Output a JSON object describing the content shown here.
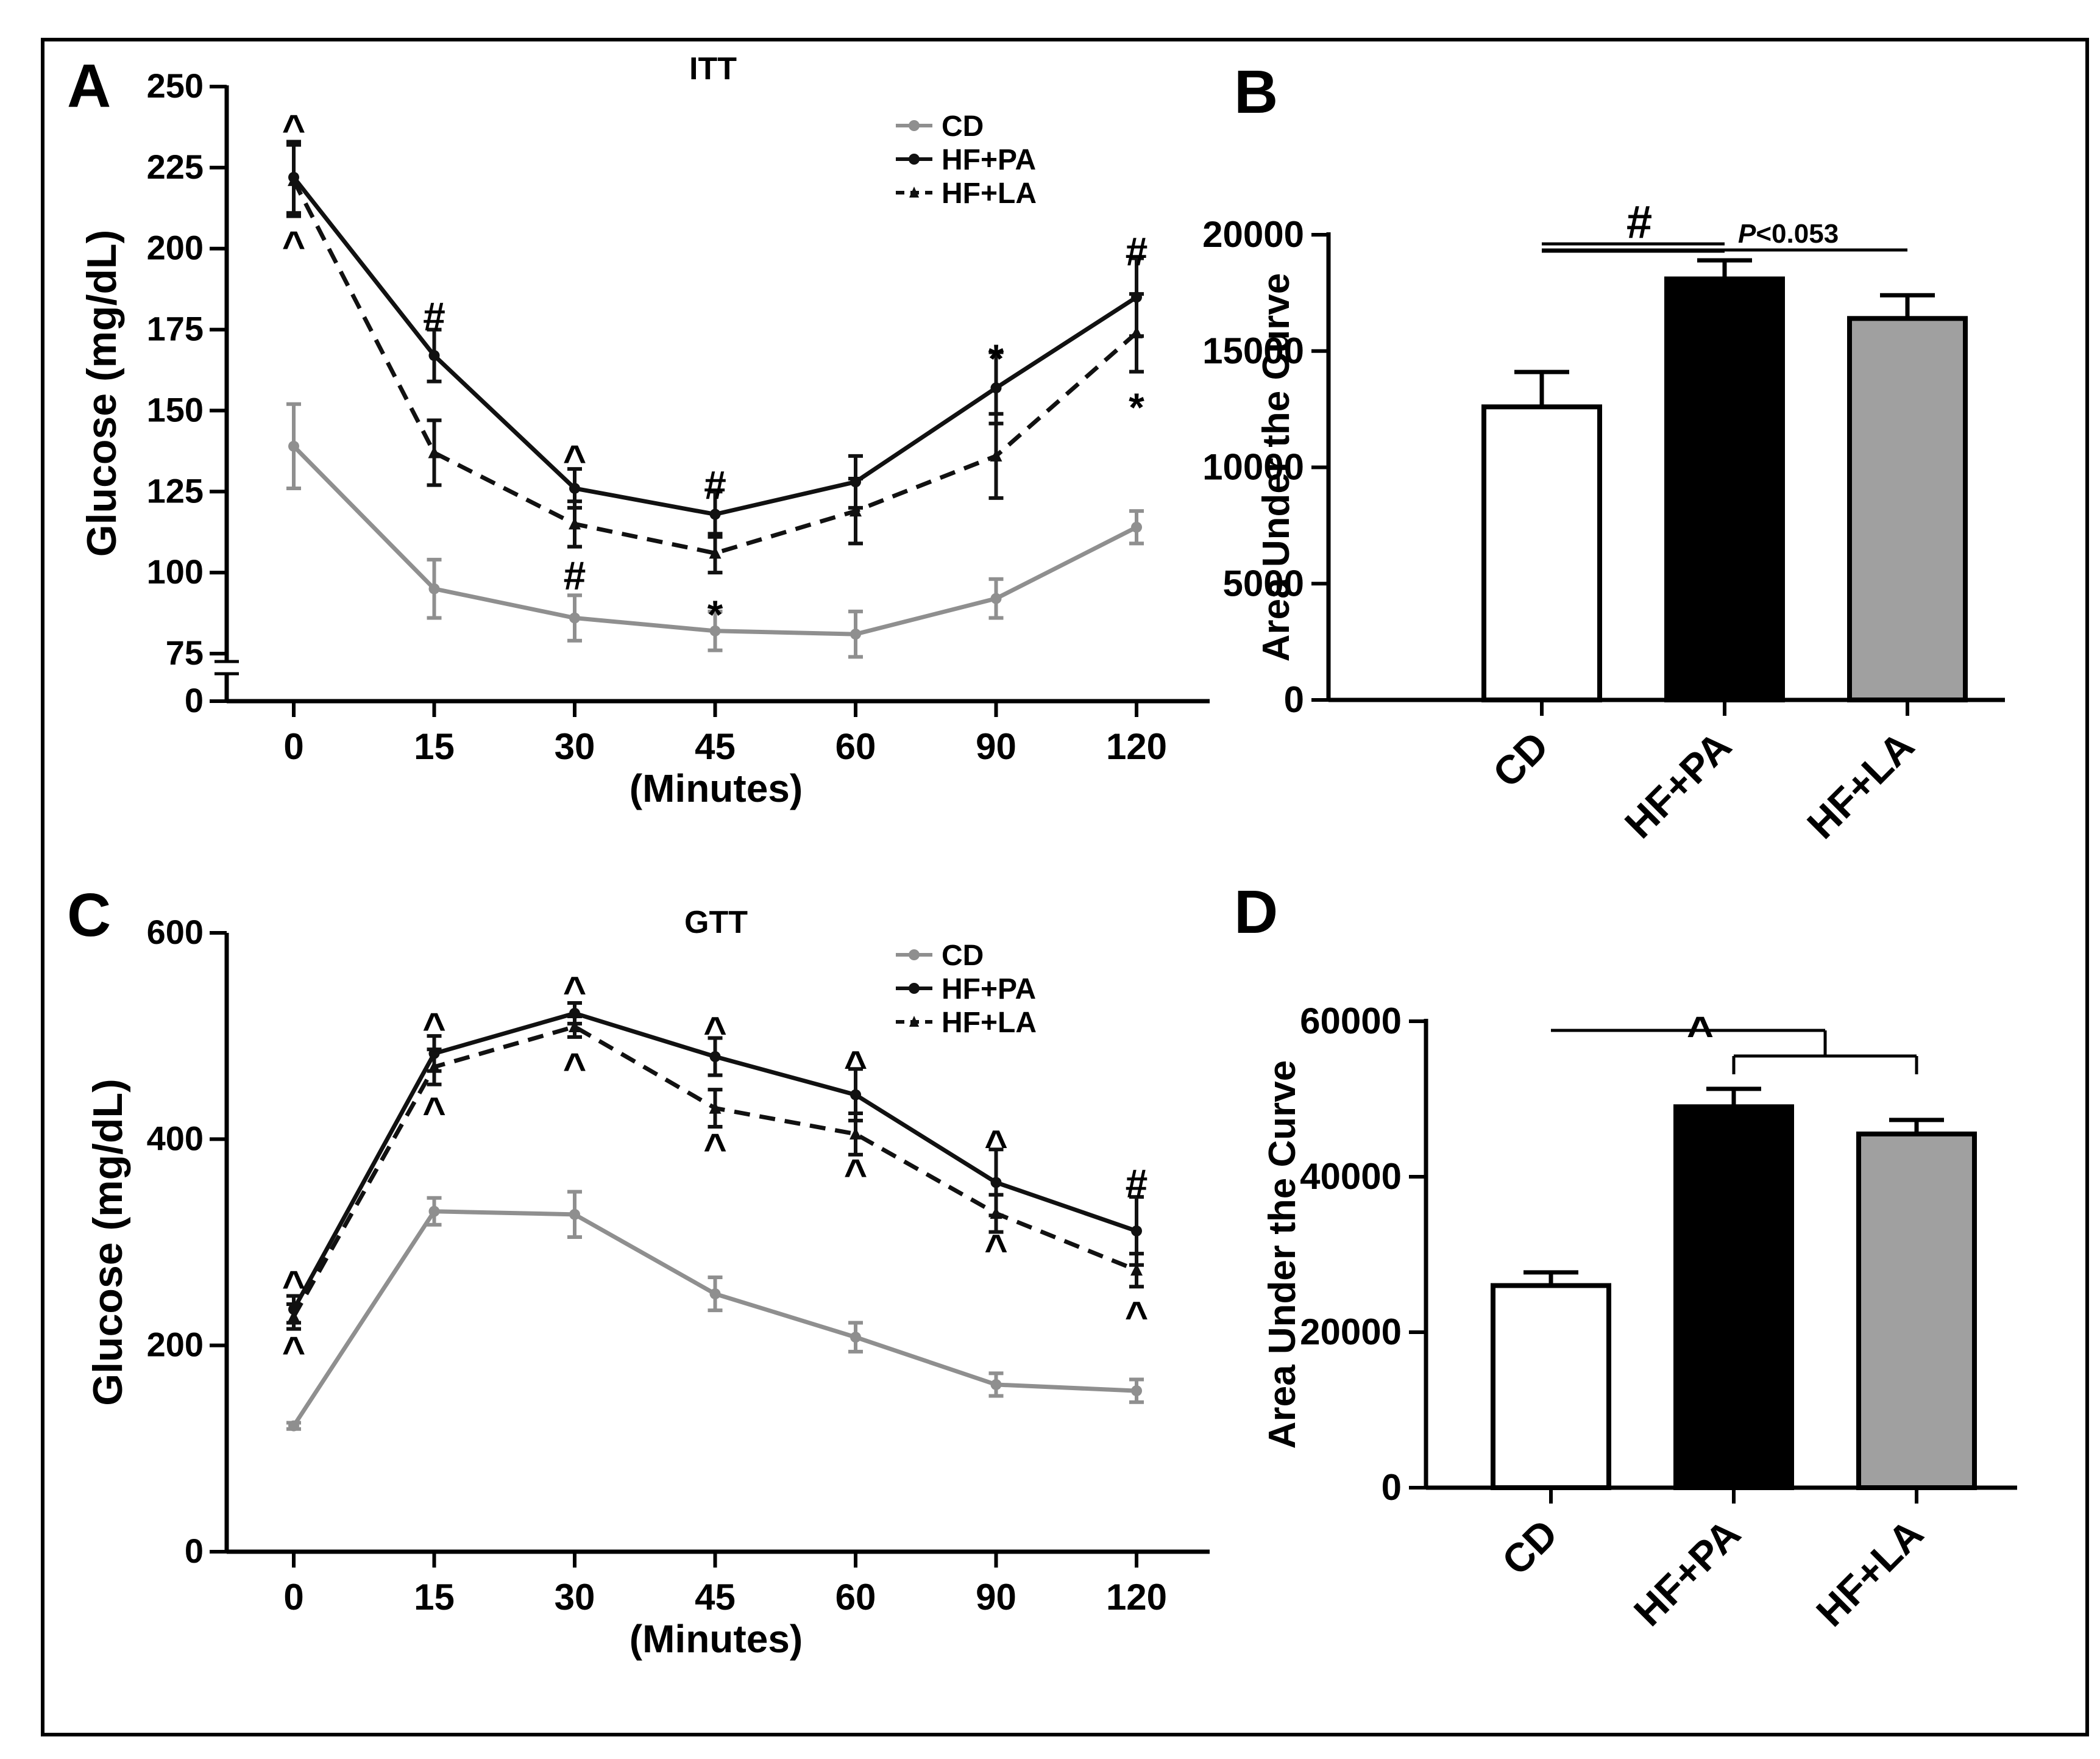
{
  "colors": {
    "cd": "#8f8f8f",
    "hf_pa": "#111111",
    "hf_la": "#111111",
    "bar_cd": "#ffffff",
    "bar_hf_pa": "#000000",
    "bar_hf_la": "#a0a0a0"
  },
  "chart_data": [
    {
      "panel": "A",
      "type": "line",
      "title": "ITT",
      "xlabel": "(Minutes)",
      "ylabel": "Glucose (mg/dL)",
      "categories": [
        "0",
        "15",
        "30",
        "45",
        "60",
        "90",
        "120"
      ],
      "y_ticks": [
        "250",
        "225",
        "200",
        "175",
        "150",
        "125",
        "100",
        "75",
        "0"
      ],
      "ylim": [
        75,
        250
      ],
      "axis_break": "between 0 and 75",
      "legend": {
        "position": "top-right",
        "entries": [
          "CD",
          "HF+PA",
          "HF+LA"
        ]
      },
      "series": [
        {
          "name": "CD",
          "style": "solid-gray",
          "values": [
            139,
            95,
            86,
            82,
            81,
            92,
            114
          ],
          "errors": [
            13,
            9,
            7,
            6,
            7,
            6,
            5
          ]
        },
        {
          "name": "HF+PA",
          "style": "solid-black",
          "values": [
            222,
            167,
            126,
            118,
            128,
            157,
            185
          ],
          "errors": [
            11,
            8,
            6,
            7,
            8,
            11,
            12
          ]
        },
        {
          "name": "HF+LA",
          "style": "dashed-black",
          "values": [
            221,
            137,
            115,
            106,
            119,
            136,
            174
          ],
          "errors": [
            11,
            10,
            7,
            6,
            10,
            13,
            12
          ]
        }
      ],
      "annotations": [
        {
          "x": "0",
          "y": 238,
          "text": "^"
        },
        {
          "x": "0",
          "y": 202,
          "text": "^"
        },
        {
          "x": "15",
          "y": 180,
          "text": "#"
        },
        {
          "x": "30",
          "y": 136,
          "text": "^"
        },
        {
          "x": "30",
          "y": 100,
          "text": "#"
        },
        {
          "x": "45",
          "y": 128,
          "text": "#"
        },
        {
          "x": "45",
          "y": 88,
          "text": "*"
        },
        {
          "x": "90",
          "y": 167,
          "text": "*"
        },
        {
          "x": "120",
          "y": 200,
          "text": "#"
        },
        {
          "x": "120",
          "y": 152,
          "text": "*"
        }
      ]
    },
    {
      "panel": "B",
      "type": "bar",
      "categories": [
        "CD",
        "HF+PA",
        "HF+LA"
      ],
      "values": [
        12600,
        18100,
        16400
      ],
      "errors": [
        1500,
        800,
        1000
      ],
      "ylabel": "Area Under the Curve",
      "y_ticks": [
        "20000",
        "15000",
        "10000",
        "5000",
        "0"
      ],
      "ylim": [
        0,
        20000
      ],
      "annotations": [
        {
          "text": "#",
          "between": [
            "CD",
            "HF+PA"
          ]
        },
        {
          "text_italic": "P",
          "text": "<0.053",
          "between": [
            "CD",
            "HF+LA"
          ]
        }
      ]
    },
    {
      "panel": "C",
      "type": "line",
      "title": "GTT",
      "xlabel": "(Minutes)",
      "ylabel": "Glucose (mg/dL)",
      "categories": [
        "0",
        "15",
        "30",
        "45",
        "60",
        "90",
        "120"
      ],
      "y_ticks": [
        "600",
        "400",
        "200",
        "0"
      ],
      "ylim": [
        0,
        600
      ],
      "legend": {
        "position": "top-right",
        "entries": [
          "CD",
          "HF+PA",
          "HF+LA"
        ]
      },
      "series": [
        {
          "name": "CD",
          "style": "solid-gray",
          "values": [
            122,
            330,
            327,
            250,
            208,
            162,
            156
          ],
          "errors": [
            3,
            13,
            22,
            16,
            14,
            11,
            11
          ]
        },
        {
          "name": "HF+PA",
          "style": "solid-black",
          "values": [
            235,
            483,
            522,
            480,
            443,
            358,
            311
          ],
          "errors": [
            13,
            17,
            10,
            18,
            25,
            32,
            33
          ]
        },
        {
          "name": "HF+LA",
          "style": "dashed-black",
          "values": [
            228,
            470,
            509,
            430,
            405,
            328,
            273
          ],
          "errors": [
            12,
            17,
            10,
            18,
            20,
            18,
            16
          ]
        }
      ],
      "annotations": [
        {
          "x": "0",
          "y": 262,
          "text": "^"
        },
        {
          "x": "0",
          "y": 198,
          "text": "^"
        },
        {
          "x": "15",
          "y": 512,
          "text": "^"
        },
        {
          "x": "15",
          "y": 430,
          "text": "^"
        },
        {
          "x": "30",
          "y": 547,
          "text": "^"
        },
        {
          "x": "30",
          "y": 473,
          "text": "^"
        },
        {
          "x": "45",
          "y": 508,
          "text": "^"
        },
        {
          "x": "45",
          "y": 395,
          "text": "^"
        },
        {
          "x": "60",
          "y": 475,
          "text": "^"
        },
        {
          "x": "60",
          "y": 370,
          "text": "^"
        },
        {
          "x": "90",
          "y": 398,
          "text": "^"
        },
        {
          "x": "90",
          "y": 297,
          "text": "^"
        },
        {
          "x": "120",
          "y": 360,
          "text": "#"
        },
        {
          "x": "120",
          "y": 232,
          "text": "^"
        }
      ]
    },
    {
      "panel": "D",
      "type": "bar",
      "categories": [
        "CD",
        "HF+PA",
        "HF+LA"
      ],
      "values": [
        26000,
        49000,
        45500
      ],
      "errors": [
        1700,
        2300,
        1800
      ],
      "ylabel": "Area Under the Curve",
      "y_ticks": [
        "60000",
        "40000",
        "20000",
        "0"
      ],
      "ylim": [
        0,
        60000
      ],
      "annotations": [
        {
          "text": "^",
          "between": [
            "CD",
            "HF+PA & HF+LA"
          ]
        }
      ]
    }
  ]
}
